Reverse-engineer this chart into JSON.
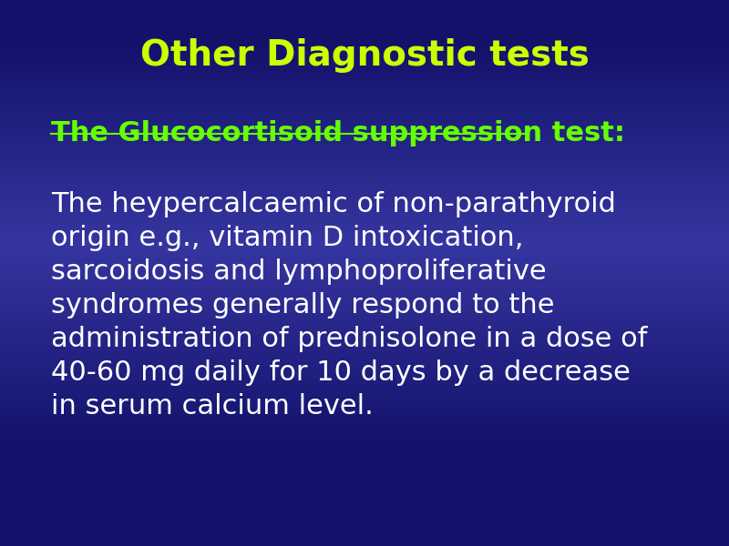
{
  "title": "Other Diagnostic tests",
  "title_color": "#CCFF00",
  "title_fontsize": 28,
  "subtitle": "The Glucocortisoid suppression test:",
  "subtitle_color": "#66FF00",
  "subtitle_fontsize": 22,
  "body_text": "The heypercalcaemic of non-parathyroid\norigin e.g., vitamin D intoxication,\nsarcoidosis and lymphoproliferative\nsyndromes generally respond to the\nadministration of prednisolone in a dose of\n40-60 mg daily for 10 days by a decrease\nin serum calcium level.",
  "body_color": "#FFFFFF",
  "body_fontsize": 22,
  "bg_color_top": "#12126b",
  "bg_color_center": "#3535a0",
  "figsize": [
    8,
    6
  ],
  "dpi": 100
}
